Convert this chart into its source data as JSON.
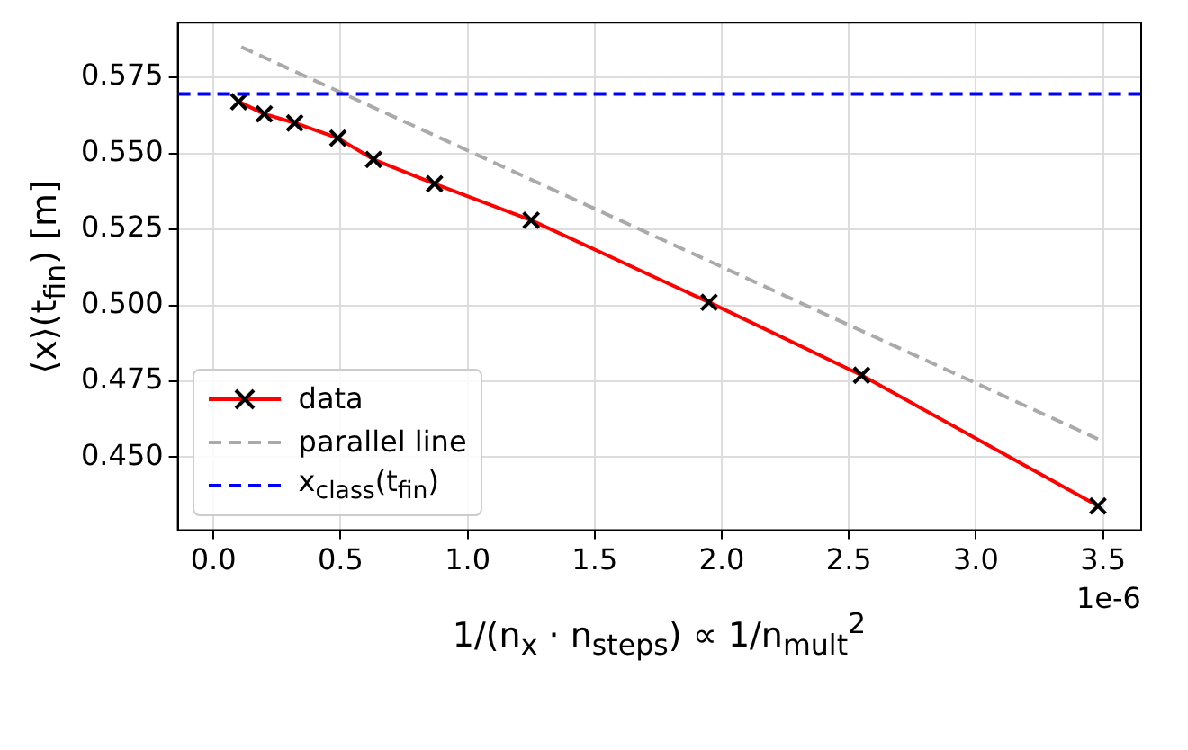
{
  "chart_data": {
    "type": "line",
    "xlabel": "1/(n$_{x}$ · n$_{steps}$) ∝ 1/n$_{mult}$$^{2}$",
    "ylabel": "⟨x⟩(t$_{fin}$) [m]",
    "xlim": [
      -0.14,
      3.65
    ],
    "xticks": [
      {
        "value": 0,
        "label": "0.0"
      },
      {
        "value": 0.5,
        "label": "0.5"
      },
      {
        "value": 1,
        "label": "1.0"
      },
      {
        "value": 1.5,
        "label": "1.5"
      },
      {
        "value": 2,
        "label": "2.0"
      },
      {
        "value": 2.5,
        "label": "2.5"
      },
      {
        "value": 3,
        "label": "3.0"
      },
      {
        "value": 3.5,
        "label": "3.5"
      }
    ],
    "ylim": [
      0.426,
      0.593
    ],
    "yticks": [
      {
        "value": 0.45,
        "label": "0.450"
      },
      {
        "value": 0.475,
        "label": "0.475"
      },
      {
        "value": 0.5,
        "label": "0.500"
      },
      {
        "value": 0.525,
        "label": "0.525"
      },
      {
        "value": 0.55,
        "label": "0.550"
      },
      {
        "value": 0.575,
        "label": "0.575"
      }
    ],
    "grid": true,
    "legend": "bottom left",
    "series": [
      {
        "name": "data",
        "color": "#ff0000",
        "marker": "cross",
        "line_style": "solid",
        "x": [
          0.1,
          0.2,
          0.32,
          0.49,
          0.63,
          0.87,
          1.25,
          1.95,
          2.55,
          3.48
        ],
        "values": [
          0.567,
          0.563,
          0.56,
          0.555,
          0.548,
          0.54,
          0.528,
          0.501,
          0.477,
          0.434
        ]
      },
      {
        "name": "parallel line",
        "color": "#aaaaaa",
        "marker": "none",
        "line_style": "dashed",
        "x": [
          0.11,
          3.48
        ],
        "values": [
          0.585,
          0.456
        ]
      }
    ],
    "ref_lines": [
      {
        "axis": "y",
        "value": 0.5695,
        "label": "x$_{class}$(t$_{fin}$)",
        "color": "#0000ff",
        "line_style": "dashed"
      }
    ],
    "annotations": [
      "1e-6"
    ]
  }
}
